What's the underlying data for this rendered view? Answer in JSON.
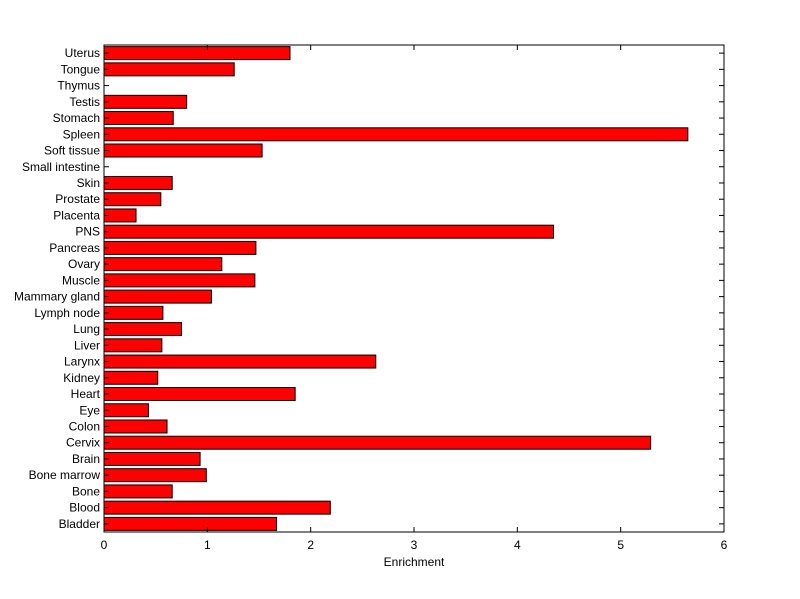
{
  "chart_data": {
    "type": "bar",
    "orientation": "horizontal",
    "categories": [
      "Uterus",
      "Tongue",
      "Thymus",
      "Testis",
      "Stomach",
      "Spleen",
      "Soft tissue",
      "Small intestine",
      "Skin",
      "Prostate",
      "Placenta",
      "PNS",
      "Pancreas",
      "Ovary",
      "Muscle",
      "Mammary gland",
      "Lymph node",
      "Lung",
      "Liver",
      "Larynx",
      "Kidney",
      "Heart",
      "Eye",
      "Colon",
      "Cervix",
      "Brain",
      "Bone marrow",
      "Bone",
      "Blood",
      "Bladder"
    ],
    "values": [
      1.8,
      1.26,
      0,
      0.8,
      0.67,
      5.65,
      1.53,
      0,
      0.66,
      0.55,
      0.31,
      4.35,
      1.47,
      1.14,
      1.46,
      1.04,
      0.57,
      0.75,
      0.56,
      2.63,
      0.52,
      1.85,
      0.43,
      0.61,
      5.29,
      0.93,
      0.99,
      0.66,
      2.19,
      1.67
    ],
    "xlabel": "Enrichment",
    "ylabel": "",
    "title": "",
    "xlim": [
      0,
      6
    ],
    "xticks": [
      "0",
      "1",
      "2",
      "3",
      "4",
      "5",
      "6"
    ],
    "grid": false,
    "bar_color": "#ff0000",
    "edge_color": "#000000"
  }
}
